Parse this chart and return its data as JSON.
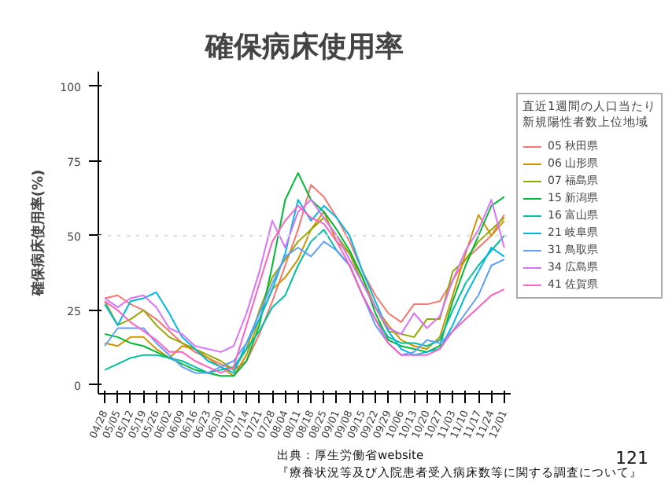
{
  "chart_data": {
    "type": "line",
    "title": "確保病床使用率",
    "ylabel": "確保病床使用率(%)",
    "legend_title": "直近1週間の人口当たり新規陽性者数上位地域",
    "legend": "right",
    "grid": false,
    "line_style": "solid",
    "marker": "none",
    "categories": [
      "04/28",
      "05/05",
      "05/12",
      "05/19",
      "05/26",
      "06/02",
      "06/09",
      "06/16",
      "06/23",
      "06/30",
      "07/07",
      "07/14",
      "07/21",
      "07/28",
      "08/04",
      "08/11",
      "08/18",
      "08/25",
      "09/01",
      "09/08",
      "09/15",
      "09/22",
      "09/29",
      "10/06",
      "10/13",
      "10/20",
      "10/27",
      "11/03",
      "11/10",
      "11/17",
      "11/24",
      "12/01"
    ],
    "ylim": [
      -3,
      105
    ],
    "yticks": [
      0,
      25,
      50,
      75,
      100
    ],
    "ref_lines": [
      {
        "axis": "y",
        "value": 50,
        "label": null,
        "color": "#d9d9d9",
        "line_style": "dotted"
      }
    ],
    "series": [
      {
        "name": "05 秋田県",
        "color": "#f8766d",
        "values": [
          29,
          30,
          27,
          25,
          22,
          18,
          14,
          11,
          9,
          7,
          5,
          8,
          17,
          28,
          40,
          52,
          67,
          63,
          56,
          48,
          38,
          30,
          24,
          21,
          27,
          27,
          28,
          35,
          42,
          46,
          50,
          57
        ]
      },
      {
        "name": "06 山形県",
        "color": "#d39200",
        "values": [
          14,
          13,
          16,
          16,
          12,
          9,
          13,
          12,
          9,
          6,
          3,
          10,
          22,
          32,
          36,
          42,
          52,
          58,
          48,
          44,
          36,
          26,
          20,
          15,
          13,
          12,
          16,
          30,
          44,
          57,
          50,
          55
        ]
      },
      {
        "name": "07 福島県",
        "color": "#93aa00",
        "values": [
          28,
          20,
          22,
          25,
          20,
          16,
          14,
          12,
          10,
          8,
          5,
          12,
          25,
          36,
          42,
          48,
          52,
          56,
          50,
          44,
          34,
          26,
          18,
          17,
          16,
          22,
          22,
          38,
          42,
          48,
          52,
          56
        ]
      },
      {
        "name": "15 新潟県",
        "color": "#00ba38",
        "values": [
          17,
          16,
          14,
          13,
          11,
          9,
          7,
          5,
          4,
          3,
          3,
          8,
          20,
          40,
          62,
          71,
          62,
          58,
          52,
          45,
          36,
          24,
          15,
          13,
          12,
          11,
          13,
          28,
          40,
          50,
          60,
          63
        ]
      },
      {
        "name": "16 富山県",
        "color": "#00c19f",
        "values": [
          5,
          7,
          9,
          10,
          10,
          9,
          8,
          6,
          4,
          5,
          6,
          12,
          18,
          26,
          30,
          40,
          48,
          52,
          45,
          40,
          30,
          22,
          16,
          14,
          14,
          13,
          15,
          25,
          34,
          40,
          45,
          50
        ]
      },
      {
        "name": "21 岐阜県",
        "color": "#00b9e3",
        "values": [
          27,
          20,
          28,
          29,
          31,
          24,
          16,
          12,
          8,
          6,
          4,
          14,
          22,
          32,
          44,
          62,
          55,
          60,
          56,
          50,
          38,
          28,
          18,
          12,
          10,
          11,
          12,
          20,
          30,
          38,
          46,
          43
        ]
      },
      {
        "name": "31 鳥取県",
        "color": "#619cff",
        "values": [
          13,
          19,
          19,
          19,
          14,
          10,
          6,
          4,
          4,
          6,
          8,
          14,
          24,
          34,
          43,
          46,
          43,
          48,
          45,
          40,
          30,
          20,
          14,
          10,
          11,
          15,
          14,
          18,
          24,
          30,
          40,
          42
        ]
      },
      {
        "name": "34 広島県",
        "color": "#db72fb",
        "values": [
          29,
          26,
          29,
          30,
          26,
          19,
          17,
          13,
          12,
          11,
          13,
          24,
          38,
          55,
          46,
          58,
          62,
          56,
          50,
          42,
          34,
          26,
          19,
          17,
          24,
          19,
          23,
          35,
          45,
          52,
          62,
          46
        ]
      },
      {
        "name": "41 佐賀県",
        "color": "#ff61c3",
        "values": [
          28,
          25,
          21,
          18,
          15,
          11,
          11,
          8,
          6,
          4,
          6,
          20,
          34,
          48,
          55,
          60,
          56,
          54,
          48,
          40,
          30,
          22,
          14,
          10,
          10,
          10,
          12,
          18,
          22,
          26,
          30,
          32
        ]
      }
    ],
    "annotations": [
      "出典：厚生労働省website",
      "『療養状況等及び入院患者受入病床数等に関する調査について』",
      "121"
    ]
  }
}
